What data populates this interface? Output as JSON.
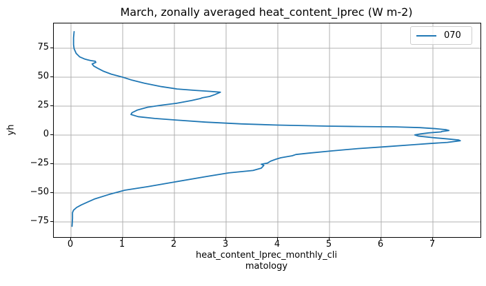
{
  "title": "March, zonally averaged heat_content_lprec (W m-2)",
  "axes": {
    "ylabel": "yh",
    "xlabel_line1": "heat_content_lprec_monthly_cli",
    "xlabel_line2": "matology",
    "x_ticks": [
      0,
      1,
      2,
      3,
      4,
      5,
      6,
      7
    ],
    "y_ticks": [
      75,
      50,
      25,
      0,
      -25,
      -50,
      -75
    ]
  },
  "legend": {
    "label": "070"
  },
  "colors": {
    "line": "#1f77b4",
    "grid": "#b0b0b0",
    "spine": "#000000",
    "legend_border": "#cccccc"
  },
  "chart_data": {
    "type": "line",
    "title": "March, zonally averaged heat_content_lprec (W m-2)",
    "xlabel": "heat_content_lprec_monthly_climatology",
    "ylabel": "yh",
    "grid": true,
    "legend_position": "upper right",
    "xlim": [
      -0.333,
      7.92
    ],
    "ylim": [
      -88.1,
      96.4
    ],
    "x_ticks": [
      0,
      1,
      2,
      3,
      4,
      5,
      6,
      7
    ],
    "y_ticks": [
      75,
      50,
      25,
      0,
      -25,
      -50,
      -75
    ],
    "series": [
      {
        "name": "070",
        "color": "#1f77b4",
        "points_format": "[heat_content_value_W_m2, yh_latitude]",
        "points": [
          [
            0.06,
            89.3
          ],
          [
            0.05,
            84.0
          ],
          [
            0.05,
            78.0
          ],
          [
            0.06,
            74.5
          ],
          [
            0.1,
            70.5
          ],
          [
            0.17,
            67.5
          ],
          [
            0.27,
            65.6
          ],
          [
            0.38,
            64.3
          ],
          [
            0.47,
            63.7
          ],
          [
            0.48,
            62.8
          ],
          [
            0.41,
            61.4
          ],
          [
            0.44,
            59.6
          ],
          [
            0.52,
            57.6
          ],
          [
            0.62,
            55.3
          ],
          [
            0.78,
            52.6
          ],
          [
            1.0,
            50.0
          ],
          [
            1.18,
            47.4
          ],
          [
            1.42,
            44.8
          ],
          [
            1.75,
            41.8
          ],
          [
            2.05,
            39.8
          ],
          [
            2.4,
            38.6
          ],
          [
            2.7,
            37.7
          ],
          [
            2.89,
            37.0
          ],
          [
            2.78,
            34.9
          ],
          [
            2.68,
            33.3
          ],
          [
            2.54,
            32.2
          ],
          [
            2.5,
            31.5
          ],
          [
            2.33,
            29.8
          ],
          [
            2.05,
            27.5
          ],
          [
            1.75,
            25.8
          ],
          [
            1.48,
            24.0
          ],
          [
            1.28,
            21.5
          ],
          [
            1.18,
            19.3
          ],
          [
            1.16,
            17.8
          ],
          [
            1.3,
            15.9
          ],
          [
            1.62,
            14.3
          ],
          [
            2.02,
            13.0
          ],
          [
            2.6,
            11.2
          ],
          [
            3.3,
            9.6
          ],
          [
            4.0,
            8.6
          ],
          [
            4.95,
            7.7
          ],
          [
            5.6,
            7.35
          ],
          [
            6.28,
            7.05
          ],
          [
            6.75,
            6.4
          ],
          [
            7.05,
            5.5
          ],
          [
            7.25,
            4.7
          ],
          [
            7.31,
            3.9
          ],
          [
            7.17,
            3.1
          ],
          [
            7.16,
            2.7
          ],
          [
            6.92,
            1.9
          ],
          [
            6.76,
            1.0
          ],
          [
            6.65,
            0.1
          ],
          [
            6.72,
            -0.9
          ],
          [
            7.0,
            -2.2
          ],
          [
            7.3,
            -3.4
          ],
          [
            7.5,
            -4.3
          ],
          [
            7.53,
            -4.9
          ],
          [
            7.28,
            -6.3
          ],
          [
            6.95,
            -7.3
          ],
          [
            6.64,
            -8.3
          ],
          [
            6.1,
            -10.0
          ],
          [
            5.55,
            -11.7
          ],
          [
            5.04,
            -13.7
          ],
          [
            4.6,
            -15.6
          ],
          [
            4.35,
            -16.8
          ],
          [
            4.28,
            -17.9
          ],
          [
            4.06,
            -19.6
          ],
          [
            3.97,
            -20.8
          ],
          [
            3.86,
            -22.6
          ],
          [
            3.8,
            -24.2
          ],
          [
            3.68,
            -25.2
          ],
          [
            3.73,
            -26.2
          ],
          [
            3.68,
            -28.6
          ],
          [
            3.52,
            -30.6
          ],
          [
            3.05,
            -32.7
          ],
          [
            2.62,
            -35.8
          ],
          [
            2.01,
            -40.5
          ],
          [
            1.48,
            -44.6
          ],
          [
            1.04,
            -47.6
          ],
          [
            0.73,
            -51.4
          ],
          [
            0.45,
            -55.3
          ],
          [
            0.33,
            -57.7
          ],
          [
            0.2,
            -60.3
          ],
          [
            0.11,
            -62.5
          ],
          [
            0.05,
            -64.8
          ],
          [
            0.03,
            -67.0
          ],
          [
            0.03,
            -72.0
          ],
          [
            0.02,
            -78.8
          ]
        ]
      }
    ]
  }
}
